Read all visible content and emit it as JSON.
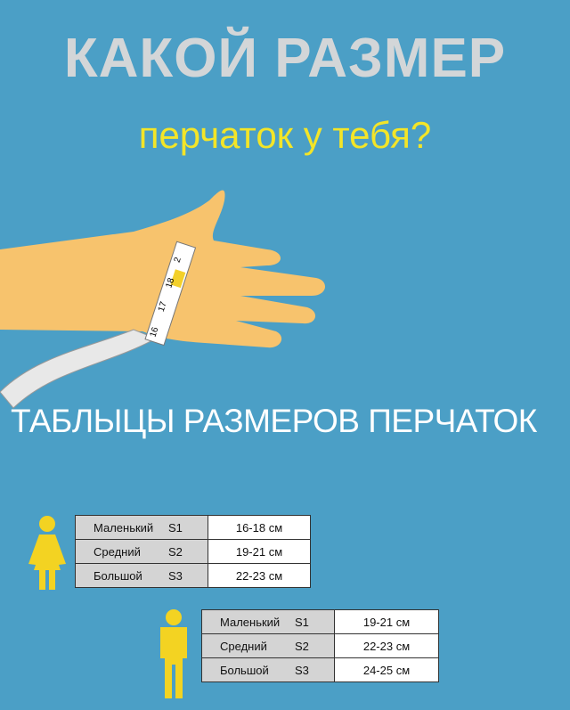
{
  "title": "КАКОЙ РАЗМЕР",
  "subtitle": "перчаток у тебя?",
  "heading": "ТАБЛЫЦЫ РАЗМЕРОВ ПЕРЧАТОК",
  "tape_marks": [
    "16",
    "17",
    "18",
    "2"
  ],
  "colors": {
    "background": "#4b9fc6",
    "accent": "#f3e528",
    "title": "#d3d6d8"
  },
  "women": {
    "icon": "female-figure-icon",
    "rows": [
      {
        "name": "Маленький",
        "size": "S1",
        "range": "16-18 см"
      },
      {
        "name": "Средний",
        "size": "S2",
        "range": "19-21 см"
      },
      {
        "name": "Большой",
        "size": "S3",
        "range": "22-23 см"
      }
    ]
  },
  "men": {
    "icon": "male-figure-icon",
    "rows": [
      {
        "name": "Маленький",
        "size": "S1",
        "range": "19-21 см"
      },
      {
        "name": "Средний",
        "size": "S2",
        "range": "22-23 см"
      },
      {
        "name": "Большой",
        "size": "S3",
        "range": "24-25 см"
      }
    ]
  }
}
